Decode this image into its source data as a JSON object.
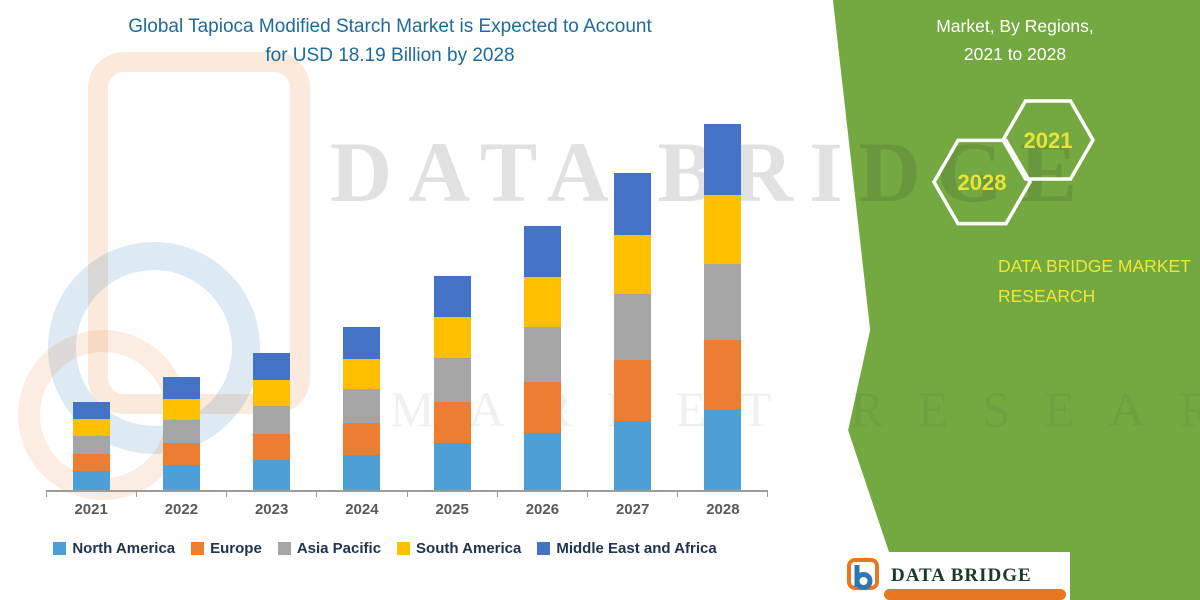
{
  "title": {
    "line1": "Global Tapioca Modified Starch Market is Expected to Account",
    "line2": "for USD 18.19 Billion by 2028",
    "color": "#206A99"
  },
  "chart_data": {
    "type": "bar",
    "subtype": "stacked",
    "title": "Global Tapioca Modified Starch Market is Expected to Account for USD 18.19 Billion by 2028",
    "categories": [
      "2021",
      "2022",
      "2023",
      "2024",
      "2025",
      "2026",
      "2027",
      "2028"
    ],
    "series": [
      {
        "name": "North America",
        "color": "#4D9FD6",
        "values": [
          0.95,
          1.23,
          1.48,
          1.76,
          2.32,
          2.86,
          3.43,
          3.97
        ]
      },
      {
        "name": "Europe",
        "color": "#ED7D31",
        "values": [
          0.84,
          1.09,
          1.31,
          1.56,
          2.06,
          2.53,
          3.04,
          3.51
        ]
      },
      {
        "name": "Asia Pacific",
        "color": "#A5A5A5",
        "values": [
          0.91,
          1.16,
          1.4,
          1.68,
          2.2,
          2.72,
          3.25,
          3.77
        ]
      },
      {
        "name": "South America",
        "color": "#FFC000",
        "values": [
          0.82,
          1.06,
          1.27,
          1.52,
          2.0,
          2.46,
          2.96,
          3.42
        ]
      },
      {
        "name": "Middle East and Africa",
        "color": "#4472C4",
        "values": [
          0.85,
          1.09,
          1.32,
          1.57,
          2.07,
          2.55,
          3.05,
          3.52
        ]
      }
    ],
    "totals": [
      4.37,
      5.63,
      6.78,
      8.09,
      10.65,
      13.12,
      15.73,
      18.19
    ],
    "unit": "USD Billion",
    "ylim": [
      0,
      18.19
    ],
    "gridlines": false,
    "legend_position": "bottom"
  },
  "side_panel": {
    "green": "#73A940",
    "heading_line1": "Market, By Regions,",
    "heading_line2": "2021 to 2028",
    "hexagon_left_year": "2028",
    "hexagon_right_year": "2021",
    "year_color": "#E9E338",
    "brand_line1": "DATA BRIDGE MARKET",
    "brand_line2": "RESEARCH"
  },
  "watermark": {
    "brand_text": "DATA BRIDGE",
    "secondary_text": "MARKET RESEARCH"
  },
  "footer_logo": {
    "brand": "DATA BRIDGE",
    "accent_orange": "#E87722",
    "accent_blue": "#2E75B6"
  }
}
